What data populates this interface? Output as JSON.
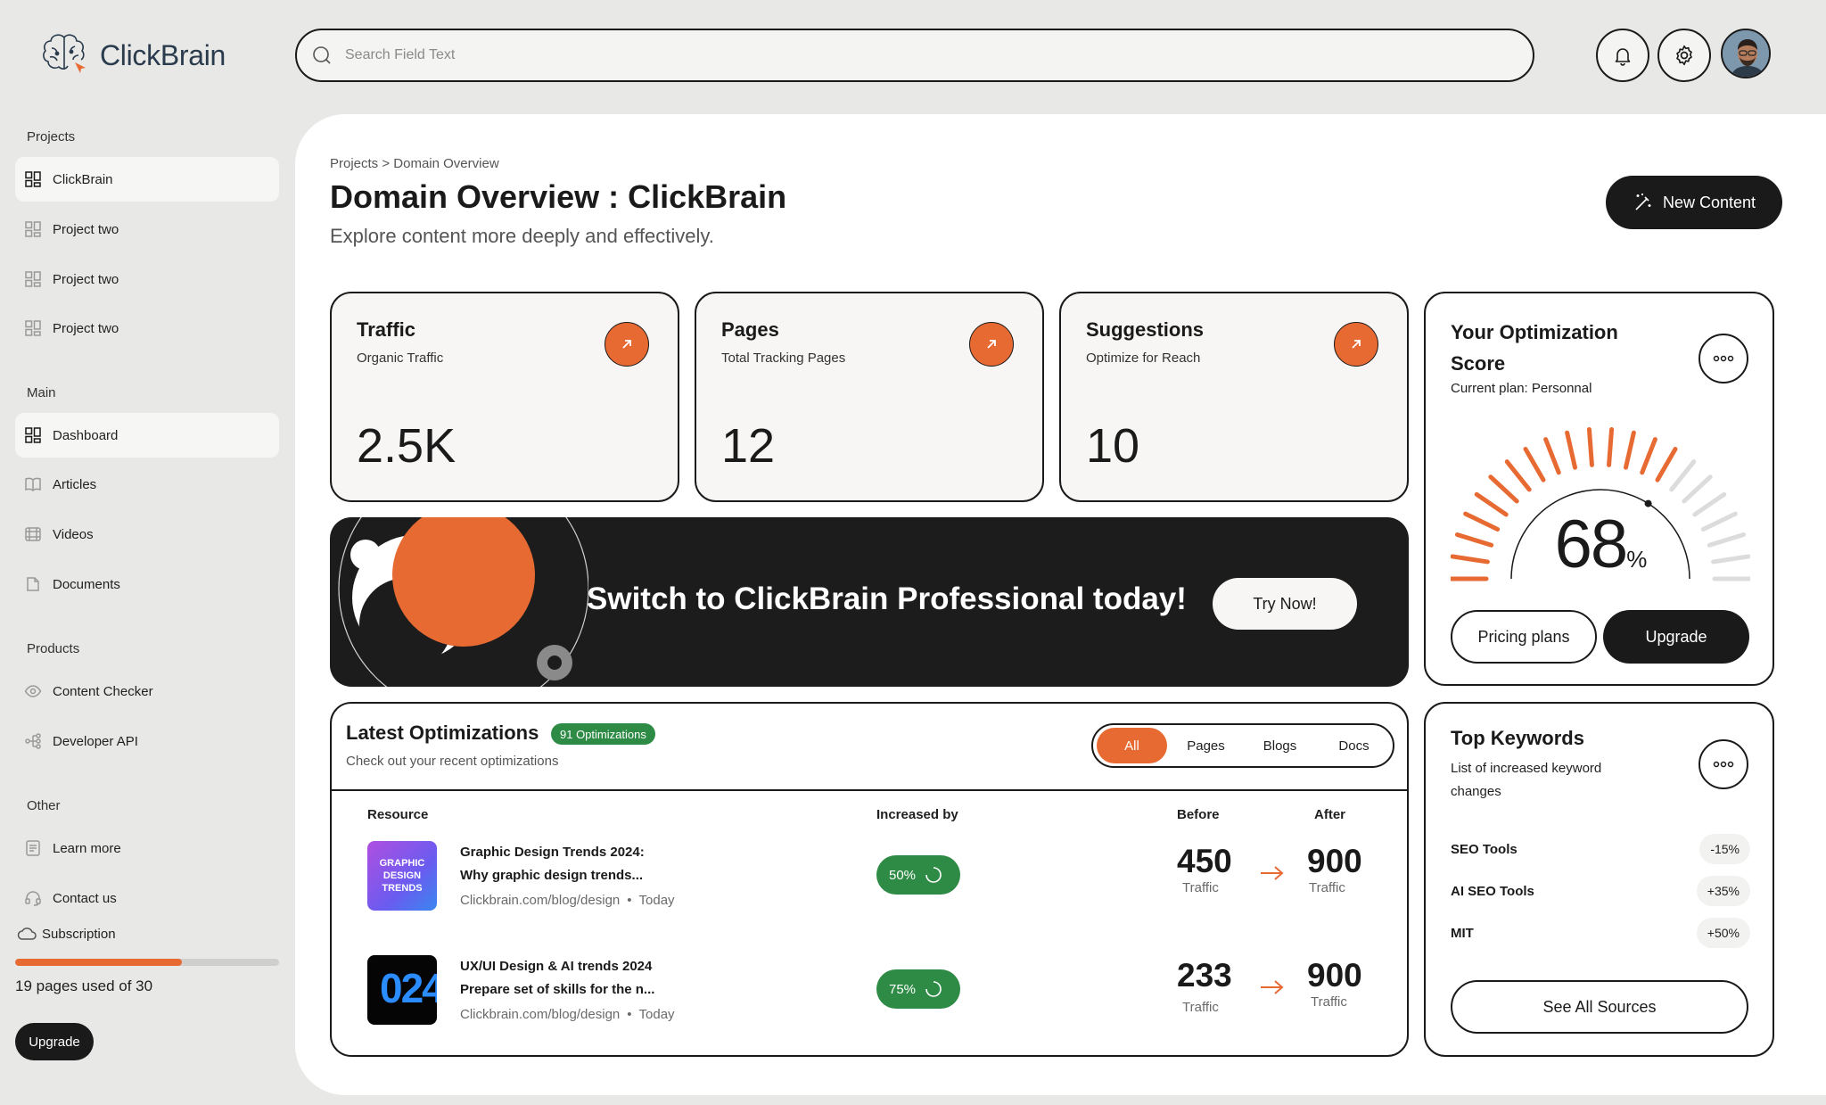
{
  "app": {
    "name": "ClickBrain"
  },
  "search": {
    "placeholder": "Search Field Text"
  },
  "sidebar": {
    "projects_title": "Projects",
    "projects": [
      "ClickBrain",
      "Project two",
      "Project two",
      "Project two"
    ],
    "main_title": "Main",
    "main": [
      "Dashboard",
      "Articles",
      "Videos",
      "Documents"
    ],
    "products_title": "Products",
    "products": [
      "Content Checker",
      "Developer API"
    ],
    "other_title": "Other",
    "other": [
      "Learn more",
      "Contact us"
    ],
    "subscription_label": "Subscription",
    "pages_used": 19,
    "pages_total": 30,
    "pages_text": "19 pages used of 30",
    "upgrade_label": "Upgrade"
  },
  "header": {
    "breadcrumb": "Projects > Domain Overview",
    "title": "Domain Overview : ClickBrain",
    "subtitle": "Explore content more deeply and effectively.",
    "new_content_label": "New Content"
  },
  "stats": [
    {
      "title": "Traffic",
      "subtitle": "Organic Traffic",
      "value": "2.5K"
    },
    {
      "title": "Pages",
      "subtitle": "Total Tracking Pages",
      "value": "12"
    },
    {
      "title": "Suggestions",
      "subtitle": "Optimize for Reach",
      "value": "10"
    }
  ],
  "banner": {
    "text": "Switch to ClickBrain Professional today!",
    "button": "Try Now!"
  },
  "score": {
    "title": "Your Optimization Score",
    "plan": "Current plan: Personnal",
    "value": "68",
    "unit": "%",
    "percent": 68,
    "pricing_label": "Pricing plans",
    "upgrade_label": "Upgrade"
  },
  "optimizations": {
    "title": "Latest Optimizations",
    "badge": "91 Optimizations",
    "subtitle": "Check out your recent optimizations",
    "filters": [
      "All",
      "Pages",
      "Blogs",
      "Docs"
    ],
    "active_filter": "All",
    "columns": {
      "resource": "Resource",
      "increased": "Increased by",
      "before": "Before",
      "after": "After"
    },
    "rows": [
      {
        "title_line1": "Graphic Design Trends 2024:",
        "title_line2": "Why graphic design trends...",
        "url": "Clickbrain.com/blog/design",
        "when": "Today",
        "increase": "50%",
        "before": "450",
        "before_label": "Traffic",
        "after": "900",
        "after_label": "Traffic",
        "thumb_text": "GRAPHIC DESIGN TRENDS"
      },
      {
        "title_line1": "UX/UI Design & AI trends 2024",
        "title_line2": "Prepare set of skills for the n...",
        "url": "Clickbrain.com/blog/design",
        "when": "Today",
        "increase": "75%",
        "before": "233",
        "before_label": "Traffic",
        "after": "900",
        "after_label": "Traffic",
        "thumb_text": "024"
      }
    ]
  },
  "keywords": {
    "title": "Top Keywords",
    "subtitle": "List of increased keyword changes",
    "items": [
      {
        "name": "SEO Tools",
        "delta": "-15%"
      },
      {
        "name": "AI SEO Tools",
        "delta": "+35%"
      },
      {
        "name": "MIT",
        "delta": "+50%"
      }
    ],
    "see_all_label": "See All Sources"
  },
  "colors": {
    "accent": "#e86a33",
    "dark": "#1a1a1a",
    "success": "#2e8b45",
    "background": "#e8e8e6"
  }
}
